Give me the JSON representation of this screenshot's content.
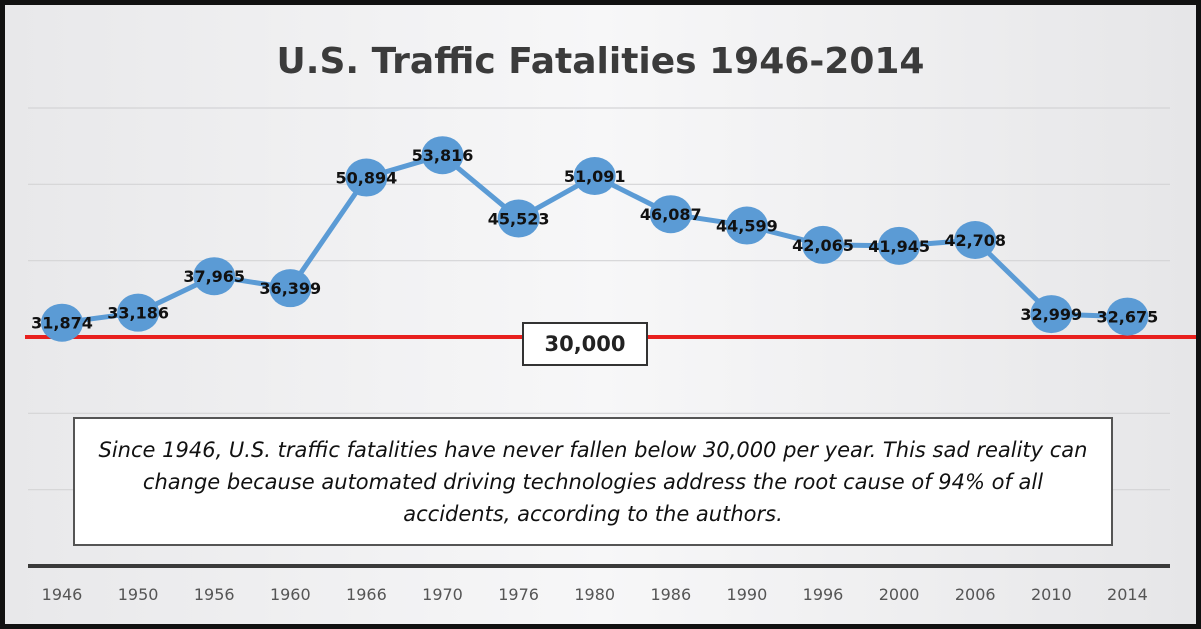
{
  "chart_data": {
    "type": "line",
    "title": "U.S. Traffic Fatalities 1946-2014",
    "categories": [
      "1946",
      "1950",
      "1956",
      "1960",
      "1966",
      "1970",
      "1976",
      "1980",
      "1986",
      "1990",
      "1996",
      "2000",
      "2006",
      "2010",
      "2014"
    ],
    "values": [
      31874,
      33186,
      37965,
      36399,
      50894,
      53816,
      45523,
      51091,
      46087,
      44599,
      42065,
      41945,
      42708,
      32999,
      32675
    ],
    "data_labels": [
      "31,874",
      "33,186",
      "37,965",
      "36,399",
      "50,894",
      "53,816",
      "45,523",
      "51,091",
      "46,087",
      "44,599",
      "42,065",
      "41,945",
      "42,708",
      "32,999",
      "32,675"
    ],
    "ylim": [
      0,
      60000
    ],
    "grid": true,
    "xlabel": "",
    "ylabel": "",
    "reference_line": {
      "value": 30000,
      "label": "30,000",
      "color": "#e8201e"
    },
    "series_color": "#5b9bd5",
    "annotation": "Since 1946, U.S. traffic fatalities have never fallen below 30,000 per year. This sad reality can change because automated driving technologies address the root cause of 94% of all accidents, according to the authors."
  }
}
